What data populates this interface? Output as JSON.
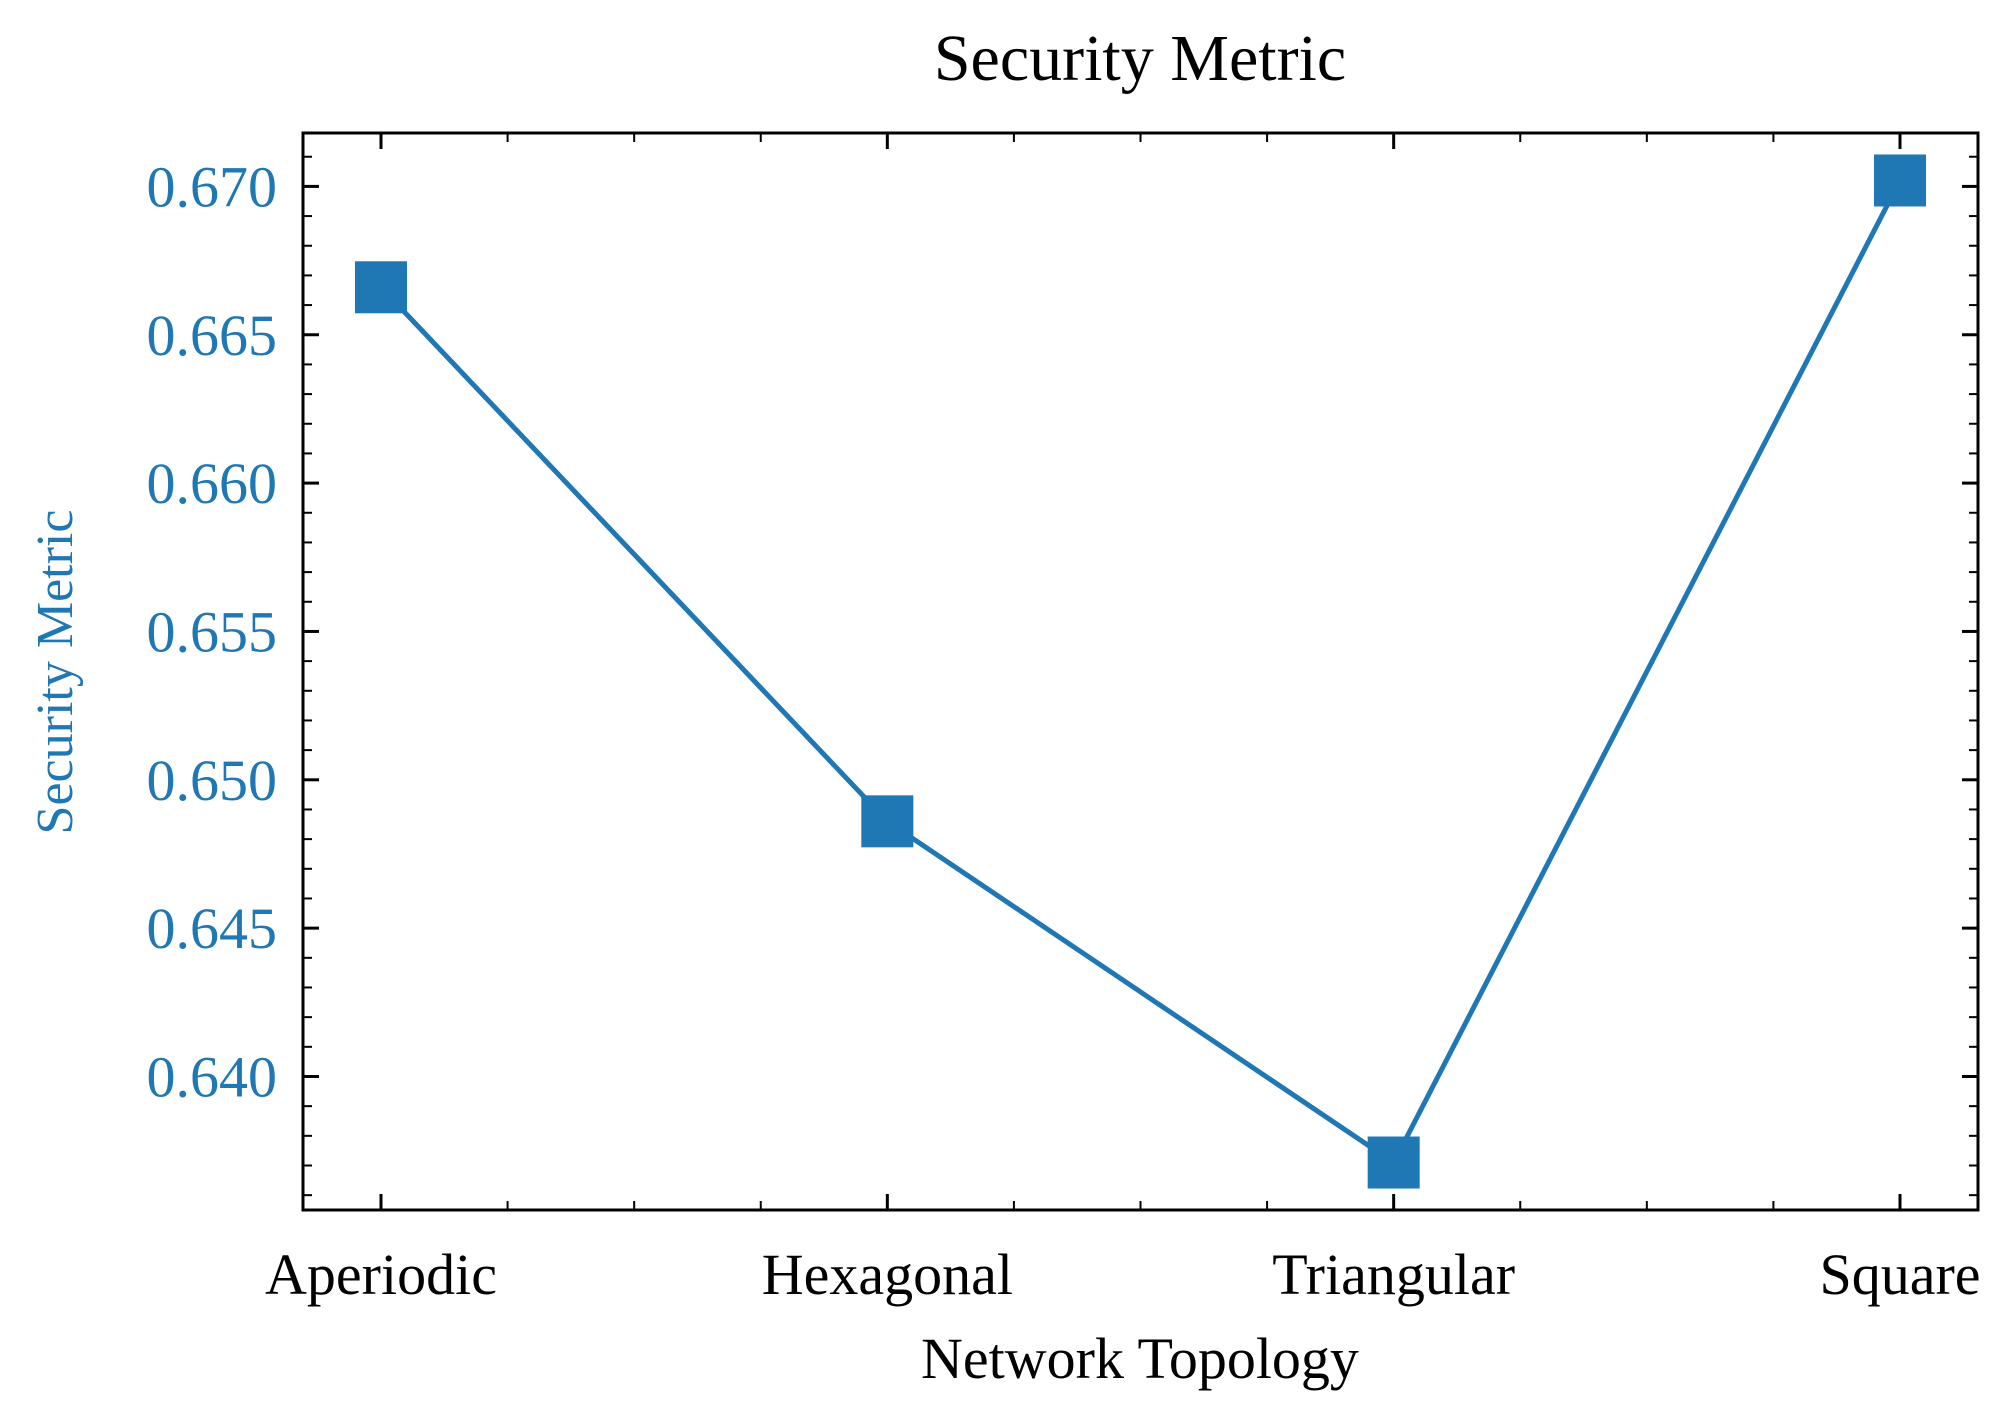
{
  "colors": {
    "series": "#1f77b4",
    "axis": "#000000",
    "background": "#ffffff"
  },
  "chart_data": {
    "type": "line",
    "title": "Security Metric",
    "xlabel": "Network Topology",
    "ylabel": "Security Metric",
    "categories": [
      "Aperiodic",
      "Hexagonal",
      "Triangular",
      "Square"
    ],
    "series": [
      {
        "values": [
          0.6666,
          0.6486,
          0.6371,
          0.6702
        ],
        "marker": "square",
        "color": "#1f77b4"
      }
    ],
    "ylim": [
      0.6355,
      0.6718
    ],
    "yticks": [
      0.64,
      0.645,
      0.65,
      0.655,
      0.66,
      0.665,
      0.67
    ],
    "ytick_labels": [
      "0.640",
      "0.645",
      "0.650",
      "0.655",
      "0.660",
      "0.665",
      "0.670"
    ],
    "y_minor_step": 0.001,
    "x_minor_per_interval": 4,
    "tick_direction": "in",
    "mirror_ticks": true,
    "grid": false,
    "legend": "none"
  }
}
